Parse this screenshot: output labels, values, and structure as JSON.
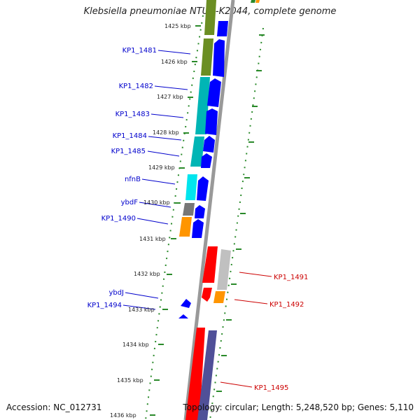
{
  "title": "Klebsiella pneumoniae NTUH-K2044, complete genome",
  "footer": {
    "accession": "Accession: NC_012731",
    "topology": "Topology: circular; Length: 5,248,520 bp; Genes: 5,110"
  },
  "ticks": [
    "1425 kbp",
    "1426 kbp",
    "1427 kbp",
    "1428 kbp",
    "1429 kbp",
    "1430 kbp",
    "1431 kbp",
    "1432 kbp",
    "1433 kbp",
    "1434 kbp",
    "1435 kbp",
    "1436 kbp"
  ],
  "labels_left": [
    {
      "text": "KP1_1481",
      "color": "#0000cc"
    },
    {
      "text": "KP1_1482",
      "color": "#0000cc"
    },
    {
      "text": "KP1_1483",
      "color": "#0000cc"
    },
    {
      "text": "KP1_1484",
      "color": "#0000cc"
    },
    {
      "text": "KP1_1485",
      "color": "#0000cc"
    },
    {
      "text": "nfnB",
      "color": "#0000cc"
    },
    {
      "text": "ybdF",
      "color": "#0000cc"
    },
    {
      "text": "KP1_1490",
      "color": "#0000cc"
    },
    {
      "text": "ybdJ",
      "color": "#0000cc"
    },
    {
      "text": "KP1_1494",
      "color": "#0000cc"
    }
  ],
  "labels_right": [
    {
      "text": "KP1_1491",
      "color": "#cc0000"
    },
    {
      "text": "KP1_1492",
      "color": "#cc0000"
    },
    {
      "text": "KP1_1495",
      "color": "#cc0000"
    }
  ],
  "colors": {
    "forward_cds": "#0000ff",
    "reverse_cds": "#ff0000",
    "backbone": "#999999",
    "tick_green": "#2a8a2a",
    "cog_olive": "#6b8e23",
    "cog_teal": "#00b5b5",
    "cog_cyan": "#00e5ee",
    "cog_gray": "#777777",
    "cog_orange": "#ff9500",
    "cog_lightgray": "#c0c0c0",
    "cog_slate": "#505098"
  }
}
